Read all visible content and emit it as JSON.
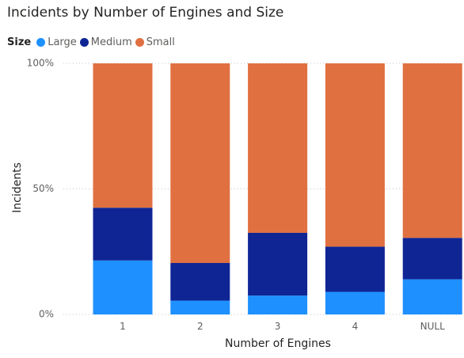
{
  "title": "Incidents by Number of Engines and Size",
  "legend": {
    "title": "Size",
    "items": [
      {
        "label": "Large",
        "color": "#1e90ff"
      },
      {
        "label": "Medium",
        "color": "#0f2594"
      },
      {
        "label": "Small",
        "color": "#e07040"
      }
    ]
  },
  "chart_data": {
    "type": "bar",
    "stacked": "100%",
    "title": "Incidents by Number of Engines and Size",
    "xlabel": "Number of Engines",
    "ylabel": "Incidents",
    "categories": [
      "1",
      "2",
      "3",
      "4",
      "NULL"
    ],
    "y_ticks": [
      "0%",
      "50%",
      "100%"
    ],
    "ylim": [
      0,
      100
    ],
    "grid": "horizontal dotted",
    "legend_position": "top-left",
    "series": [
      {
        "name": "Large",
        "color": "#1e90ff",
        "values": [
          21.5,
          5.5,
          7.5,
          9,
          14
        ]
      },
      {
        "name": "Medium",
        "color": "#0f2594",
        "values": [
          21,
          15,
          25,
          18,
          16.5
        ]
      },
      {
        "name": "Small",
        "color": "#e07040",
        "values": [
          57.5,
          79.5,
          67.5,
          73,
          69.5
        ]
      }
    ]
  }
}
